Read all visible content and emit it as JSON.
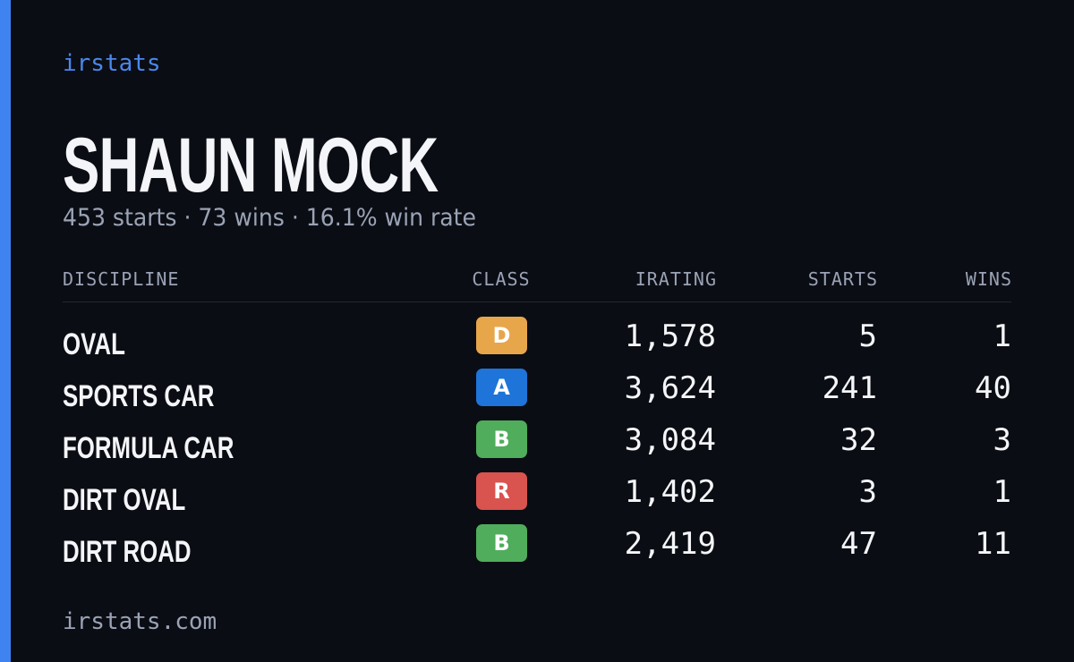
{
  "brand": "irstats",
  "driver": {
    "name": "SHAUN MOCK",
    "summary": "453 starts · 73 wins · 16.1% win rate"
  },
  "table": {
    "columns": [
      "DISCIPLINE",
      "CLASS",
      "IRATING",
      "STARTS",
      "WINS"
    ],
    "rows": [
      {
        "discipline": "OVAL",
        "class": "D",
        "class_color": "#e8a64a",
        "irating": "1,578",
        "starts": "5",
        "wins": "1"
      },
      {
        "discipline": "SPORTS CAR",
        "class": "A",
        "class_color": "#1e74d8",
        "irating": "3,624",
        "starts": "241",
        "wins": "40"
      },
      {
        "discipline": "FORMULA CAR",
        "class": "B",
        "class_color": "#4fad5b",
        "irating": "3,084",
        "starts": "32",
        "wins": "3"
      },
      {
        "discipline": "DIRT OVAL",
        "class": "R",
        "class_color": "#d9534f",
        "irating": "1,402",
        "starts": "3",
        "wins": "1"
      },
      {
        "discipline": "DIRT ROAD",
        "class": "B",
        "class_color": "#4fad5b",
        "irating": "2,419",
        "starts": "47",
        "wins": "11"
      }
    ]
  },
  "footer": "irstats.com"
}
